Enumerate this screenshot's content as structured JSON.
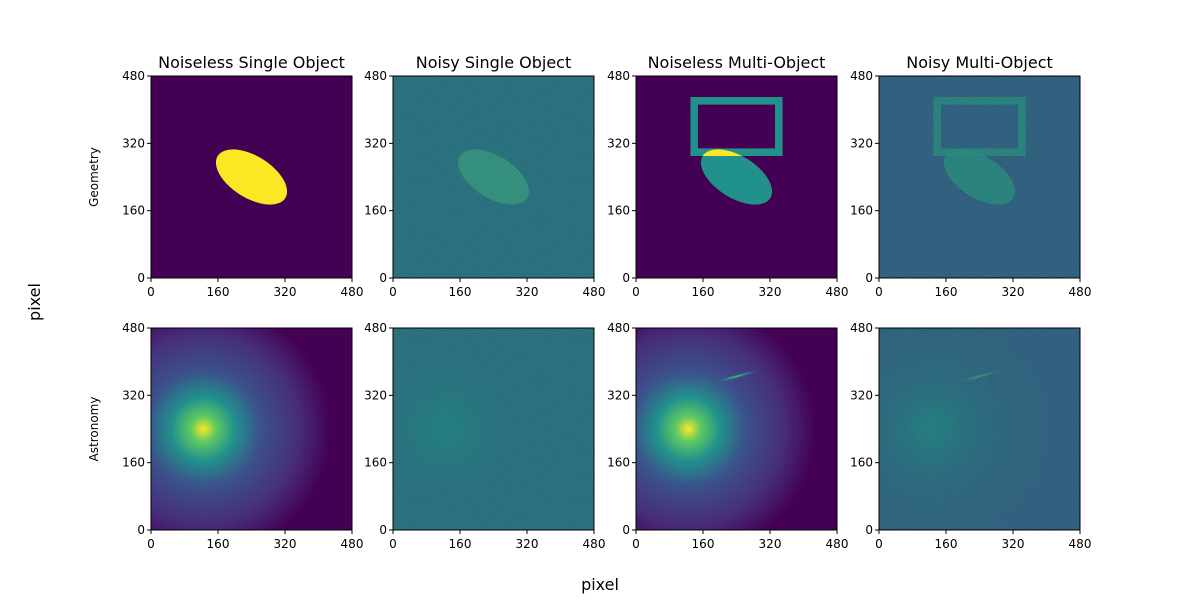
{
  "figure": {
    "supxlabel": "pixel",
    "supylabel": "pixel"
  },
  "colors": {
    "viridis_0": "#440154",
    "viridis_25": "#3b528b",
    "viridis_50": "#21918c",
    "viridis_75": "#5ec962",
    "viridis_100": "#fde725",
    "noise_bg": "#2c7c8c",
    "noise_bg_multi": "#336a8c"
  },
  "chart_data": [
    {
      "type": "heatmap",
      "title": "Noiseless Single Object",
      "row_label": "Geometry",
      "xlim": [
        0,
        480
      ],
      "ylim": [
        0,
        480
      ],
      "xticks": [
        "0",
        "160",
        "320",
        "480"
      ],
      "yticks": [
        "0",
        "160",
        "320",
        "480"
      ],
      "colormap": "viridis",
      "noise": false,
      "objects": [
        {
          "kind": "ellipse",
          "cx": 240,
          "cy": 240,
          "rx": 95,
          "ry": 50,
          "angle_deg": -32,
          "level": 1.0
        }
      ]
    },
    {
      "type": "heatmap",
      "title": "Noisy Single Object",
      "xlim": [
        0,
        480
      ],
      "ylim": [
        0,
        480
      ],
      "xticks": [
        "0",
        "160",
        "320",
        "480"
      ],
      "yticks": [
        "0",
        "160",
        "320",
        "480"
      ],
      "colormap": "viridis",
      "noise": true,
      "objects": [
        {
          "kind": "ellipse",
          "cx": 240,
          "cy": 240,
          "rx": 95,
          "ry": 50,
          "angle_deg": -32,
          "level": 0.62
        }
      ]
    },
    {
      "type": "heatmap",
      "title": "Noiseless Multi-Object",
      "xlim": [
        0,
        480
      ],
      "ylim": [
        0,
        480
      ],
      "xticks": [
        "0",
        "160",
        "320",
        "480"
      ],
      "yticks": [
        "0",
        "160",
        "320",
        "480"
      ],
      "colormap": "viridis",
      "noise": false,
      "objects": [
        {
          "kind": "ellipse",
          "cx": 240,
          "cy": 240,
          "rx": 95,
          "ry": 50,
          "angle_deg": -32,
          "level": 0.5
        },
        {
          "kind": "rect_frame",
          "x0": 130,
          "x1": 350,
          "y0": 290,
          "y1": 430,
          "thickness": 18,
          "level": 0.5
        },
        {
          "kind": "overlap_highlight",
          "level": 1.0
        }
      ]
    },
    {
      "type": "heatmap",
      "title": "Noisy Multi-Object",
      "xlim": [
        0,
        480
      ],
      "ylim": [
        0,
        480
      ],
      "xticks": [
        "0",
        "160",
        "320",
        "480"
      ],
      "yticks": [
        "0",
        "160",
        "320",
        "480"
      ],
      "colormap": "viridis",
      "noise": true,
      "objects": [
        {
          "kind": "ellipse",
          "cx": 240,
          "cy": 240,
          "rx": 95,
          "ry": 50,
          "angle_deg": -32,
          "level": 0.5
        },
        {
          "kind": "rect_frame",
          "x0": 130,
          "x1": 350,
          "y0": 290,
          "y1": 430,
          "thickness": 18,
          "level": 0.5
        }
      ]
    },
    {
      "type": "heatmap",
      "title": "",
      "row_label": "Astronomy",
      "xlim": [
        0,
        480
      ],
      "ylim": [
        0,
        480
      ],
      "xticks": [
        "0",
        "160",
        "320",
        "480"
      ],
      "yticks": [
        "0",
        "160",
        "320",
        "480"
      ],
      "colormap": "viridis",
      "noise": false,
      "objects": [
        {
          "kind": "gaussian",
          "cx": 125,
          "cy": 240,
          "sigma": 95,
          "level": 1.0
        }
      ]
    },
    {
      "type": "heatmap",
      "title": "",
      "xlim": [
        0,
        480
      ],
      "ylim": [
        0,
        480
      ],
      "xticks": [
        "0",
        "160",
        "320",
        "480"
      ],
      "yticks": [
        "0",
        "160",
        "320",
        "480"
      ],
      "colormap": "viridis",
      "noise": true,
      "objects": [
        {
          "kind": "gaussian",
          "cx": 125,
          "cy": 240,
          "sigma": 95,
          "level": 0.55
        }
      ]
    },
    {
      "type": "heatmap",
      "title": "",
      "xlim": [
        0,
        480
      ],
      "ylim": [
        0,
        480
      ],
      "xticks": [
        "0",
        "160",
        "320",
        "480"
      ],
      "yticks": [
        "0",
        "160",
        "320",
        "480"
      ],
      "colormap": "viridis",
      "noise": false,
      "objects": [
        {
          "kind": "gaussian",
          "cx": 125,
          "cy": 240,
          "sigma": 95,
          "level": 1.0
        },
        {
          "kind": "streak",
          "cx": 240,
          "cy": 365,
          "length": 60,
          "width": 5,
          "angle_deg": 15,
          "level": 0.8
        }
      ]
    },
    {
      "type": "heatmap",
      "title": "",
      "xlim": [
        0,
        480
      ],
      "ylim": [
        0,
        480
      ],
      "xticks": [
        "0",
        "160",
        "320",
        "480"
      ],
      "yticks": [
        "0",
        "160",
        "320",
        "480"
      ],
      "colormap": "viridis",
      "noise": true,
      "objects": [
        {
          "kind": "gaussian",
          "cx": 125,
          "cy": 240,
          "sigma": 95,
          "level": 0.55
        },
        {
          "kind": "streak",
          "cx": 240,
          "cy": 365,
          "length": 60,
          "width": 5,
          "angle_deg": 15,
          "level": 0.5
        }
      ]
    }
  ]
}
